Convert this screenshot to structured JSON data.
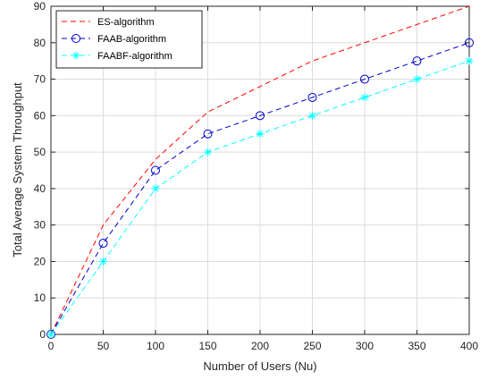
{
  "chart_data": {
    "type": "line",
    "title": "",
    "xlabel": "Number of  Users (Nu)",
    "ylabel": "Total Average System Throughput",
    "xlim": [
      0,
      400
    ],
    "ylim": [
      0,
      90
    ],
    "xticks": [
      0,
      50,
      100,
      150,
      200,
      250,
      300,
      350,
      400
    ],
    "yticks": [
      0,
      10,
      20,
      30,
      40,
      50,
      60,
      70,
      80,
      90
    ],
    "grid": true,
    "legend_position": "top-left",
    "x": [
      0,
      50,
      100,
      150,
      200,
      250,
      300,
      350,
      400
    ],
    "series": [
      {
        "name": "ES-algorithm",
        "values": [
          0,
          30,
          48,
          61,
          68,
          75,
          80,
          85,
          90
        ],
        "color": "#ff0000",
        "line_style": "dashed",
        "marker": "none"
      },
      {
        "name": "FAAB-algorithm",
        "values": [
          0,
          25,
          45,
          55,
          60,
          65,
          70,
          75,
          80
        ],
        "color": "#0000cc",
        "line_style": "dashed",
        "marker": "circle"
      },
      {
        "name": "FAABF-algorithm",
        "values": [
          0,
          20,
          40,
          50,
          55,
          60,
          65,
          70,
          75
        ],
        "color": "#00ffff",
        "line_style": "dashed",
        "marker": "asterisk"
      }
    ]
  }
}
